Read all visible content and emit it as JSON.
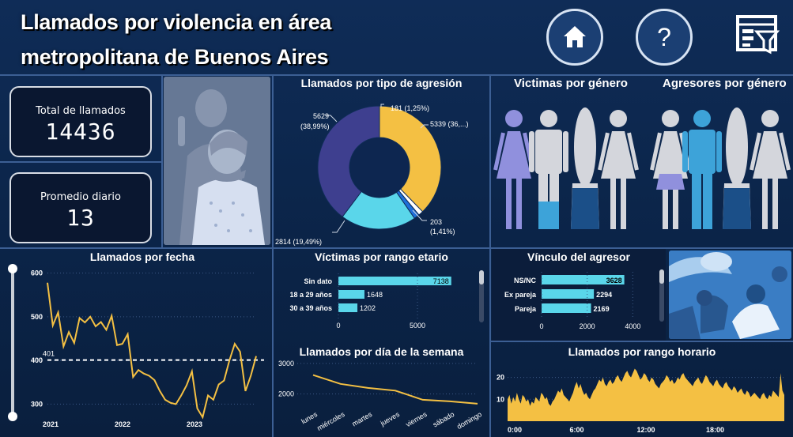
{
  "header": {
    "title_line1": "Llamados por violencia en área",
    "title_line2": "metropolitana de Buenos Aires",
    "home_icon": "home-icon",
    "help_icon": "question-icon",
    "filter_icon": "filter-panel-icon"
  },
  "kpis": {
    "total_label": "Total de llamados",
    "total_value": "14436",
    "avg_label": "Promedio diario",
    "avg_value": "13"
  },
  "donut": {
    "title": "Llamados por tipo de agresión",
    "colors": [
      "#f4c043",
      "#ffffff",
      "#1f6fd8",
      "#5ad6ea",
      "#3e3f8f"
    ],
    "labels": {
      "l1": "181 (1,25%)",
      "l2": "5339 (36,...)",
      "l3a": "203",
      "l3b": "(1,41%)",
      "l4": "2814 (19,49%)",
      "l5a": "5629",
      "l5b": "(38,99%)"
    }
  },
  "gender": {
    "victims_title": "Victimas por género",
    "aggressors_title": "Agresores por género"
  },
  "line_fecha": {
    "title": "Llamados por fecha",
    "avg_label": "401",
    "color": "#f4c043"
  },
  "age": {
    "title": "Víctimas por rango etario",
    "color": "#5ad6ea"
  },
  "vinculo": {
    "title": "Vínculo del agresor",
    "color": "#5ad6ea"
  },
  "weekday": {
    "title": "Llamados por día de la semana",
    "color": "#f4c043"
  },
  "hour": {
    "title": "Llamados por rango horario",
    "color": "#f4c043"
  },
  "chart_data": [
    {
      "type": "pie",
      "title": "Llamados por tipo de agresión",
      "values": [
        5339,
        181,
        203,
        2814,
        5629
      ],
      "labels": [
        "5339 (36,...)",
        "181 (1,25%)",
        "203 (1,41%)",
        "2814 (19,49%)",
        "5629 (38,99%)"
      ]
    },
    {
      "type": "line",
      "title": "Llamados por fecha",
      "x_ticks": [
        "2021",
        "2022",
        "2023"
      ],
      "y_ticks": [
        300,
        400,
        500,
        600
      ],
      "ylim": [
        270,
        610
      ],
      "x": [
        0,
        1,
        2,
        3,
        4,
        5,
        6,
        7,
        8,
        9,
        10,
        11,
        12,
        13,
        14,
        15,
        16,
        17,
        18,
        19,
        20,
        21,
        22,
        23,
        24,
        25,
        26,
        27,
        28,
        29,
        30,
        31,
        32,
        33,
        34,
        35,
        36,
        37,
        38,
        39
      ],
      "values": [
        578,
        480,
        510,
        432,
        465,
        440,
        497,
        487,
        500,
        478,
        488,
        470,
        502,
        435,
        438,
        460,
        362,
        378,
        370,
        365,
        355,
        330,
        310,
        303,
        300,
        320,
        343,
        375,
        290,
        270,
        320,
        310,
        345,
        354,
        400,
        438,
        420,
        330,
        365,
        410
      ],
      "reference_line": 401
    },
    {
      "type": "bar",
      "title": "Víctimas por rango etario",
      "categories": [
        "Sin dato",
        "18 a 29 años",
        "30 a 39 años"
      ],
      "values": [
        7138,
        1648,
        1202
      ],
      "x_ticks": [
        0,
        5000
      ],
      "xlim": [
        0,
        10000
      ]
    },
    {
      "type": "bar",
      "title": "Vínculo del agresor",
      "categories": [
        "NS/NC",
        "Ex pareja",
        "Pareja"
      ],
      "values": [
        3628,
        2294,
        2169
      ],
      "x_ticks": [
        0,
        2000,
        4000
      ],
      "xlim": [
        0,
        4300
      ]
    },
    {
      "type": "line",
      "title": "Llamados por día de la semana",
      "categories": [
        "lunes",
        "miércoles",
        "martes",
        "jueves",
        "viernes",
        "sábado",
        "domingo"
      ],
      "values": [
        2620,
        2330,
        2200,
        2110,
        1810,
        1760,
        1680
      ],
      "y_ticks": [
        2000,
        3000
      ],
      "ylim": [
        1600,
        3050
      ]
    },
    {
      "type": "area",
      "title": "Llamados por rango horario",
      "x_ticks": [
        "0:00",
        "6:00",
        "12:00",
        "18:00"
      ],
      "y_ticks": [
        10,
        20
      ],
      "ylim": [
        0,
        26
      ],
      "values": [
        10,
        12,
        8,
        11,
        9,
        13,
        10,
        8,
        12,
        11,
        9,
        10,
        7,
        9,
        8,
        11,
        10,
        9,
        13,
        12,
        10,
        11,
        8,
        7,
        9,
        10,
        12,
        14,
        13,
        15,
        12,
        11,
        10,
        9,
        11,
        13,
        16,
        18,
        15,
        17,
        14,
        12,
        13,
        11,
        10,
        12,
        14,
        15,
        17,
        19,
        18,
        20,
        17,
        16,
        18,
        19,
        17,
        18,
        20,
        21,
        19,
        18,
        20,
        22,
        23,
        21,
        20,
        22,
        24,
        23,
        21,
        19,
        20,
        22,
        21,
        19,
        18,
        20,
        19,
        17,
        16,
        15,
        17,
        18,
        19,
        21,
        20,
        18,
        19,
        17,
        18,
        20,
        19,
        21,
        22,
        20,
        19,
        18,
        17,
        16,
        18,
        19,
        20,
        18,
        17,
        19,
        21,
        20,
        18,
        17,
        16,
        18,
        19,
        17,
        16,
        15,
        17,
        18,
        16,
        15,
        14,
        16,
        15,
        13,
        14,
        15,
        13,
        12,
        14,
        13,
        11,
        12,
        13,
        12,
        11,
        10,
        12,
        13,
        11,
        10,
        12,
        11,
        14,
        13,
        12,
        11,
        22,
        14,
        12
      ]
    }
  ]
}
